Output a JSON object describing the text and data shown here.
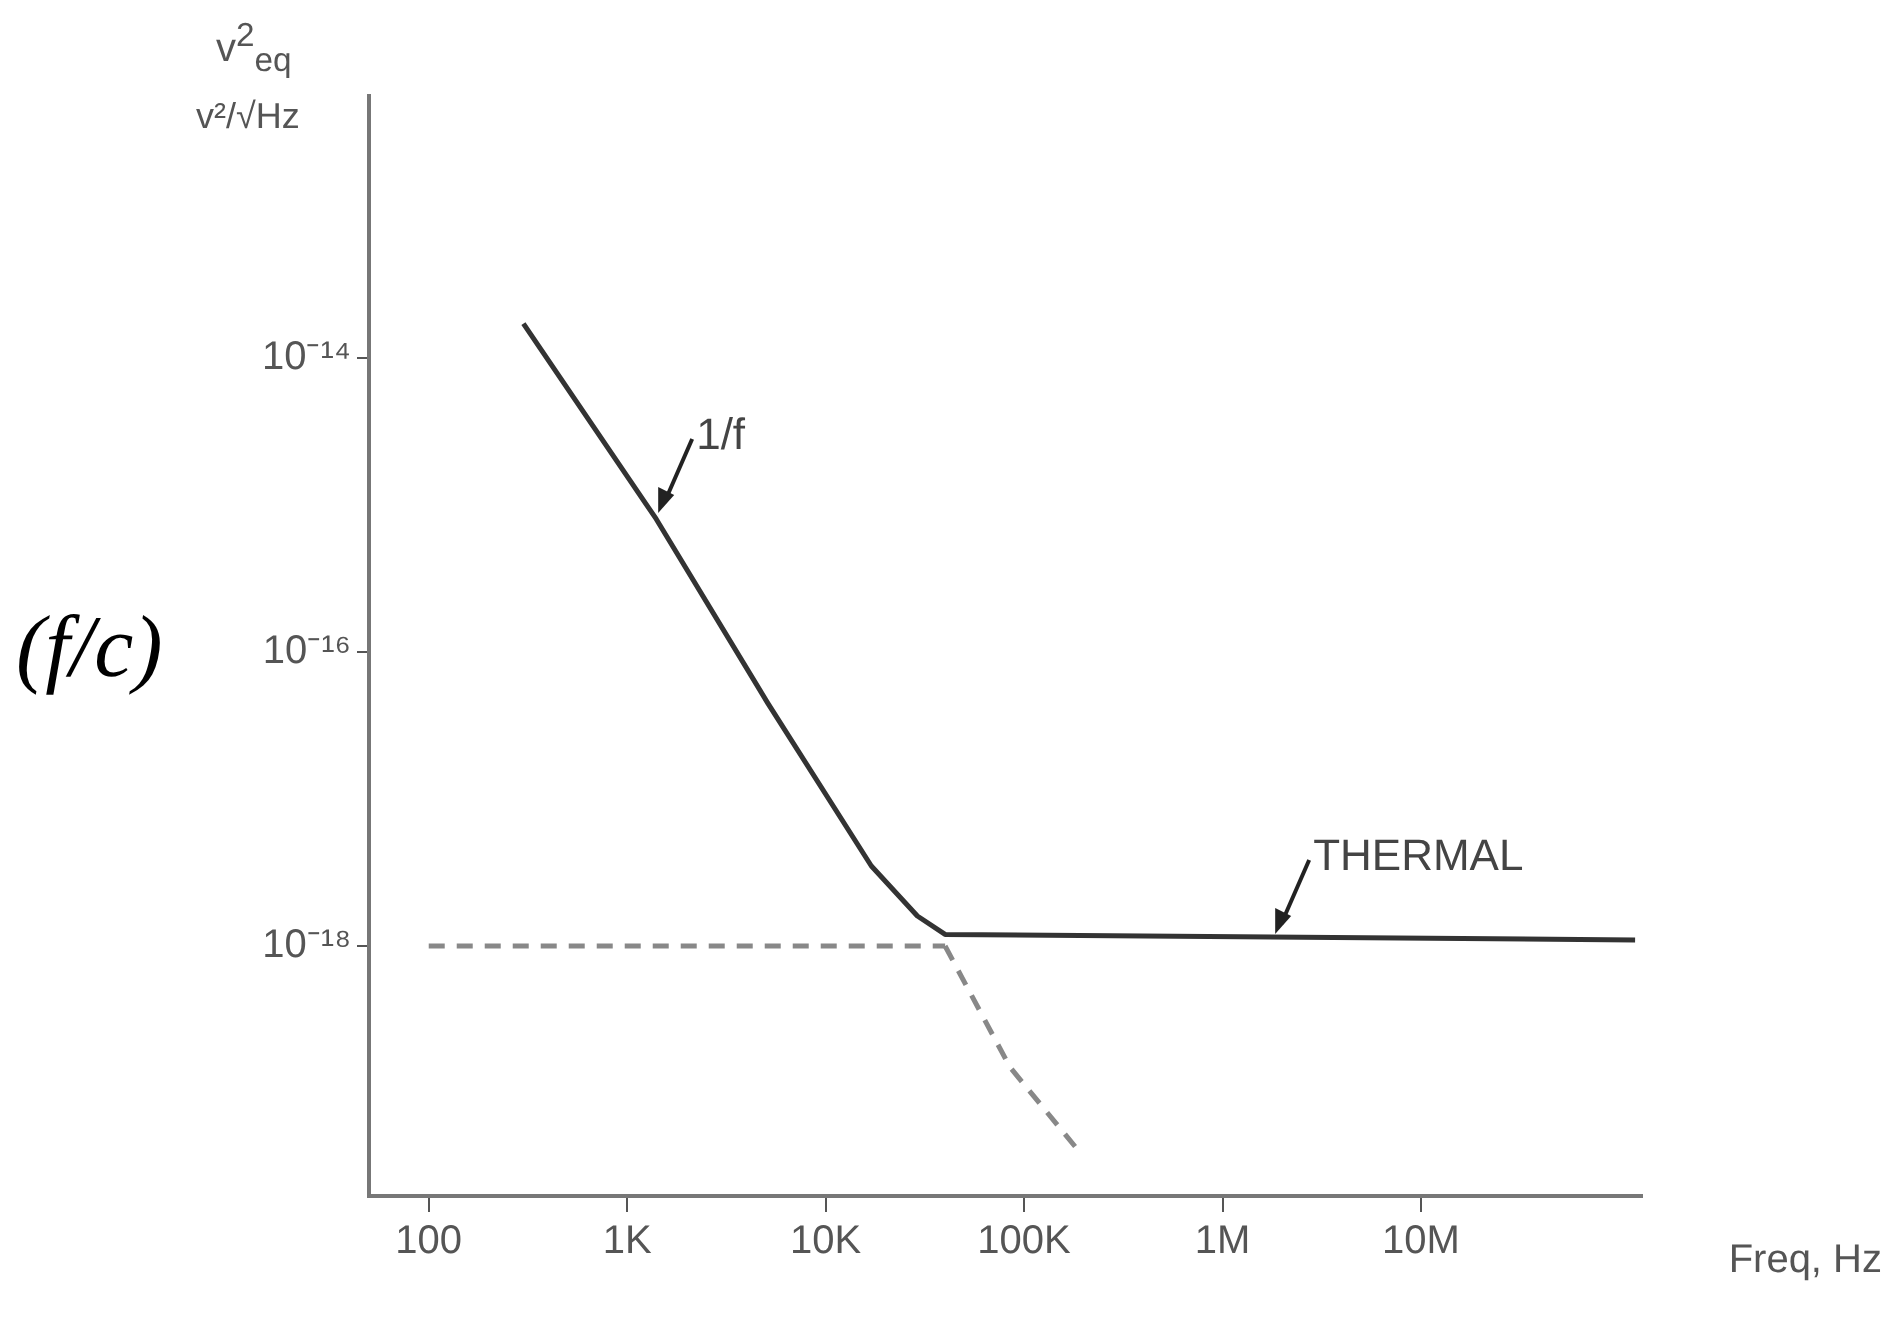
{
  "chart_data": {
    "type": "line",
    "ylabel": "v$^{2}$$_{eq}$",
    "xlabel": "Freq, Hz",
    "log": "xy",
    "grid": false,
    "legend": false,
    "marker": "none",
    "xlim": [
      50,
      130000000
    ],
    "ylim": [
      2e-20,
      6e-13
    ],
    "xticks": [
      {
        "value": 100,
        "label": "100"
      },
      {
        "value": 1000,
        "label": "1K"
      },
      {
        "value": 10000,
        "label": "10K"
      },
      {
        "value": 100000,
        "label": "100K"
      },
      {
        "value": 1000000,
        "label": "1M"
      },
      {
        "value": 10000000,
        "label": "10M"
      }
    ],
    "yticks": [
      {
        "value": 1e-18,
        "label": "10⁻¹⁸"
      },
      {
        "value": 1e-16,
        "label": "10⁻¹⁶"
      },
      {
        "value": 1e-14,
        "label": "10⁻¹⁴"
      }
    ],
    "series": [
      {
        "color": "#333333",
        "line_style": "solid",
        "x": [
          300,
          1400,
          5100,
          17000,
          29000,
          40000,
          120000000
        ],
        "values": [
          1.7e-14,
          8e-16,
          4.5e-17,
          3.5e-18,
          1.6e-18,
          1.2e-18,
          1.1e-18
        ]
      },
      {
        "color": "#888888",
        "line_style": "dashed",
        "x": [
          100,
          40000
        ],
        "values": [
          1e-18,
          1e-18
        ]
      },
      {
        "color": "#888888",
        "line_style": "dashed",
        "x": [
          40000,
          85000,
          190000
        ],
        "values": [
          1e-18,
          1.5e-19,
          4e-20
        ]
      }
    ],
    "annotations": [
      "v²/√Hz",
      "(f/c)",
      {
        "text": "1/f",
        "x": 1400,
        "y": 8e-16
      },
      {
        "text": "THERMAL",
        "x": 1800000,
        "y": 1.1e-18
      }
    ]
  }
}
